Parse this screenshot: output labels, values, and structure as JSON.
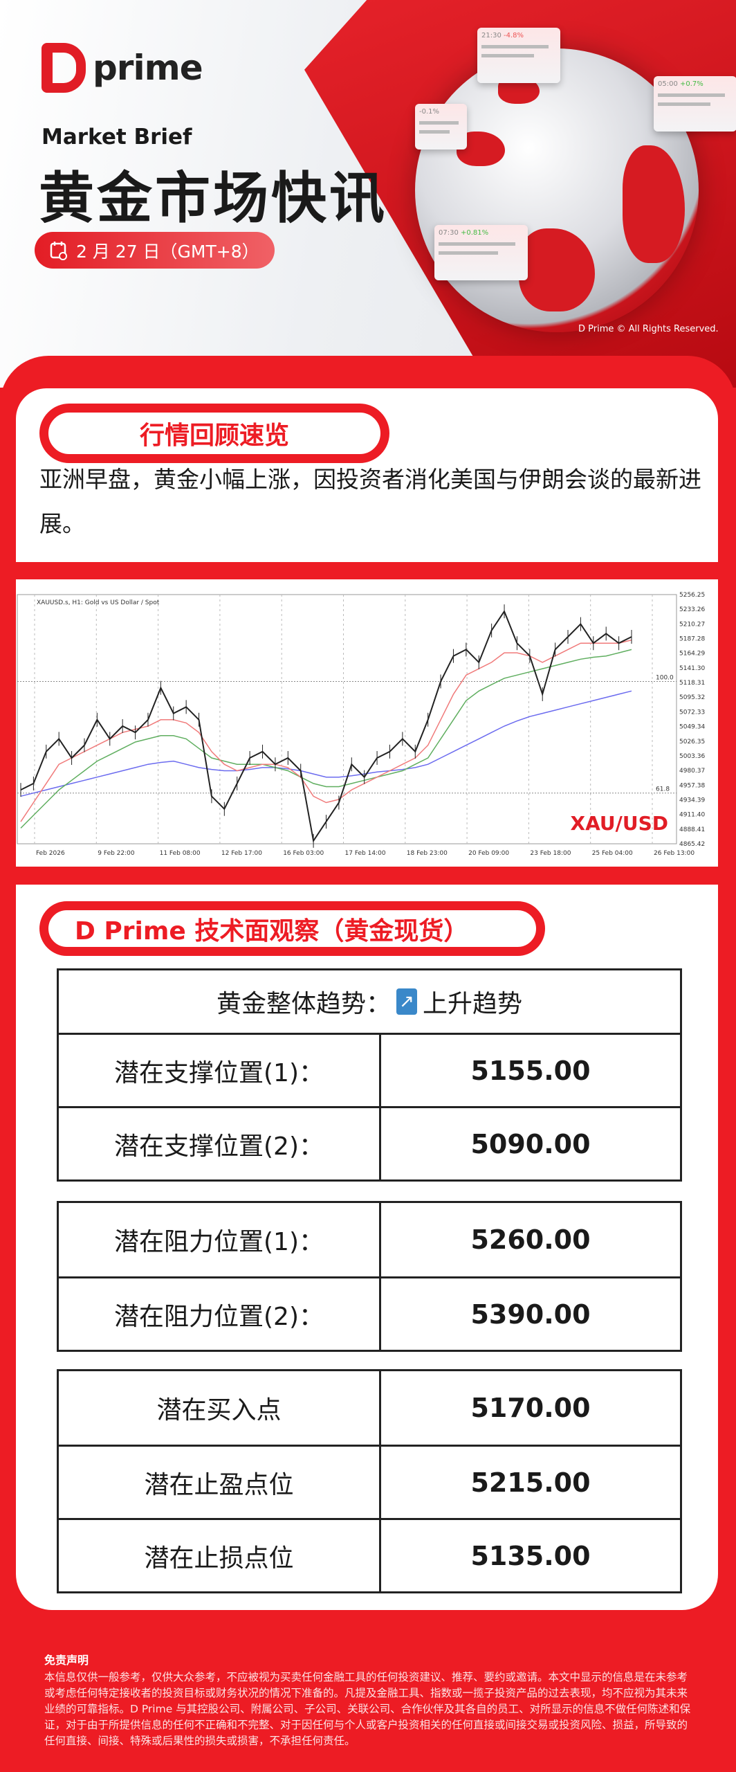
{
  "brand": {
    "logo_text": "prime",
    "copyright": "D Prime © All Rights Reserved."
  },
  "hero": {
    "kicker": "Market Brief",
    "title": "黄金市场快讯",
    "date": "2 月 27 日（GMT+8）",
    "flag_cards": [
      {
        "time": "21:30",
        "change": "-4.8%"
      },
      {
        "time": "05:00",
        "change": "+0.7%"
      },
      {
        "time": "07:30",
        "change": "+0.81%"
      },
      {
        "time": "",
        "change": "-0.1%"
      }
    ]
  },
  "review": {
    "heading": "行情回顾速览",
    "text": "亚洲早盘，黄金小幅上涨，因投资者消化美国与伊朗会谈的最新进展。"
  },
  "chart": {
    "header": "XAUUSD.s, H1: Gold vs US Dollar / Spot",
    "watermark": "XAU/USD",
    "fib_labels": [
      "100.0",
      "61.8"
    ],
    "colors": {
      "price": "#222222",
      "ma_red": "#f07a7a",
      "ma_green": "#5fae5f",
      "ma_blue": "#6b6bef"
    }
  },
  "chart_data": {
    "type": "line",
    "ylim": [
      4865.42,
      5256.25
    ],
    "y_ticks": [
      "5256.25",
      "5233.26",
      "5210.27",
      "5187.28",
      "5164.29",
      "5141.30",
      "5118.31",
      "5095.32",
      "5072.33",
      "5049.34",
      "5026.35",
      "5003.36",
      "4980.37",
      "4957.38",
      "4934.39",
      "4911.40",
      "4888.41",
      "4865.42"
    ],
    "x_ticks": [
      "Feb 2026",
      "9 Feb 22:00",
      "11 Feb 08:00",
      "12 Feb 17:00",
      "16 Feb 03:00",
      "17 Feb 14:00",
      "18 Feb 23:00",
      "20 Feb 09:00",
      "23 Feb 18:00",
      "25 Feb 04:00",
      "26 Feb 13:00"
    ],
    "series": [
      {
        "values": [
          4950,
          4960,
          5010,
          5030,
          5000,
          5020,
          5060,
          5030,
          5050,
          5040,
          5060,
          5110,
          5070,
          5080,
          5060,
          4940,
          4920,
          4960,
          5000,
          5010,
          4990,
          5000,
          4980,
          4870,
          4900,
          4930,
          4990,
          4970,
          5000,
          5010,
          5030,
          5010,
          5060,
          5120,
          5160,
          5170,
          5150,
          5200,
          5230,
          5180,
          5160,
          5100,
          5170,
          5190,
          5210,
          5180,
          5195,
          5180,
          5190
        ]
      },
      {
        "values": [
          4900,
          4930,
          4960,
          4990,
          5000,
          5010,
          5020,
          5030,
          5040,
          5045,
          5050,
          5060,
          5060,
          5055,
          5040,
          5010,
          4990,
          4980,
          4985,
          4990,
          4990,
          4985,
          4970,
          4940,
          4930,
          4935,
          4950,
          4960,
          4970,
          4980,
          4990,
          5000,
          5020,
          5060,
          5100,
          5130,
          5140,
          5150,
          5165,
          5165,
          5160,
          5150,
          5160,
          5170,
          5180,
          5180,
          5180,
          5180,
          5185
        ]
      },
      {
        "values": [
          4890,
          4910,
          4930,
          4950,
          4965,
          4980,
          4995,
          5005,
          5015,
          5025,
          5030,
          5035,
          5035,
          5030,
          5015,
          5000,
          4995,
          4990,
          4990,
          4990,
          4985,
          4980,
          4970,
          4960,
          4955,
          4955,
          4960,
          4965,
          4970,
          4975,
          4980,
          4990,
          5000,
          5030,
          5060,
          5090,
          5105,
          5115,
          5125,
          5130,
          5135,
          5140,
          5145,
          5150,
          5155,
          5158,
          5160,
          5165,
          5170
        ]
      },
      {
        "values": [
          4940,
          4945,
          4950,
          4955,
          4960,
          4965,
          4970,
          4975,
          4980,
          4985,
          4990,
          4993,
          4995,
          4990,
          4985,
          4982,
          4980,
          4980,
          4982,
          4985,
          4985,
          4983,
          4980,
          4975,
          4970,
          4970,
          4972,
          4975,
          4978,
          4980,
          4982,
          4985,
          4990,
          5000,
          5010,
          5020,
          5030,
          5040,
          5050,
          5058,
          5065,
          5070,
          5075,
          5080,
          5085,
          5090,
          5095,
          5100,
          5105
        ]
      }
    ]
  },
  "technical": {
    "heading": "D Prime 技术面观察（黄金现货）",
    "trend_label": "黄金整体趋势：",
    "trend_icon": "arrow-up-right-icon",
    "trend_value": "上升趋势",
    "support": [
      {
        "label": "潜在支撑位置(1)：",
        "value": "5155.00"
      },
      {
        "label": "潜在支撑位置(2)：",
        "value": "5090.00"
      }
    ],
    "resistance": [
      {
        "label": "潜在阻力位置(1)：",
        "value": "5260.00"
      },
      {
        "label": "潜在阻力位置(2)：",
        "value": "5390.00"
      }
    ],
    "trade": [
      {
        "label": "潜在买入点",
        "value": "5170.00"
      },
      {
        "label": "潜在止盈点位",
        "value": "5215.00"
      },
      {
        "label": "潜在止损点位",
        "value": "5135.00"
      }
    ]
  },
  "disclaimer": {
    "title": "免责声明",
    "text": "本信息仅供一般参考，仅供大众参考，不应被视为买卖任何金融工具的任何投资建议、推荐、要约或邀请。本文中显示的信息是在未参考或考虑任何特定接收者的投资目标或财务状况的情况下准备的。凡提及金融工具、指数或一揽子投资产品的过去表现，均不应视为其未来业绩的可靠指标。D Prime 与其控股公司、附属公司、子公司、关联公司、合作伙伴及其各自的员工、对所显示的信息不做任何陈述和保证，对于由于所提供信息的任何不正确和不完整、对于因任何与个人或客户投资相关的任何直接或间接交易或投资风险、损益，所导致的任何直接、间接、特殊或后果性的损失或损害，不承担任何责任。"
  },
  "colors": {
    "brand_red": "#ed1c24",
    "text": "#1a1a1a"
  }
}
